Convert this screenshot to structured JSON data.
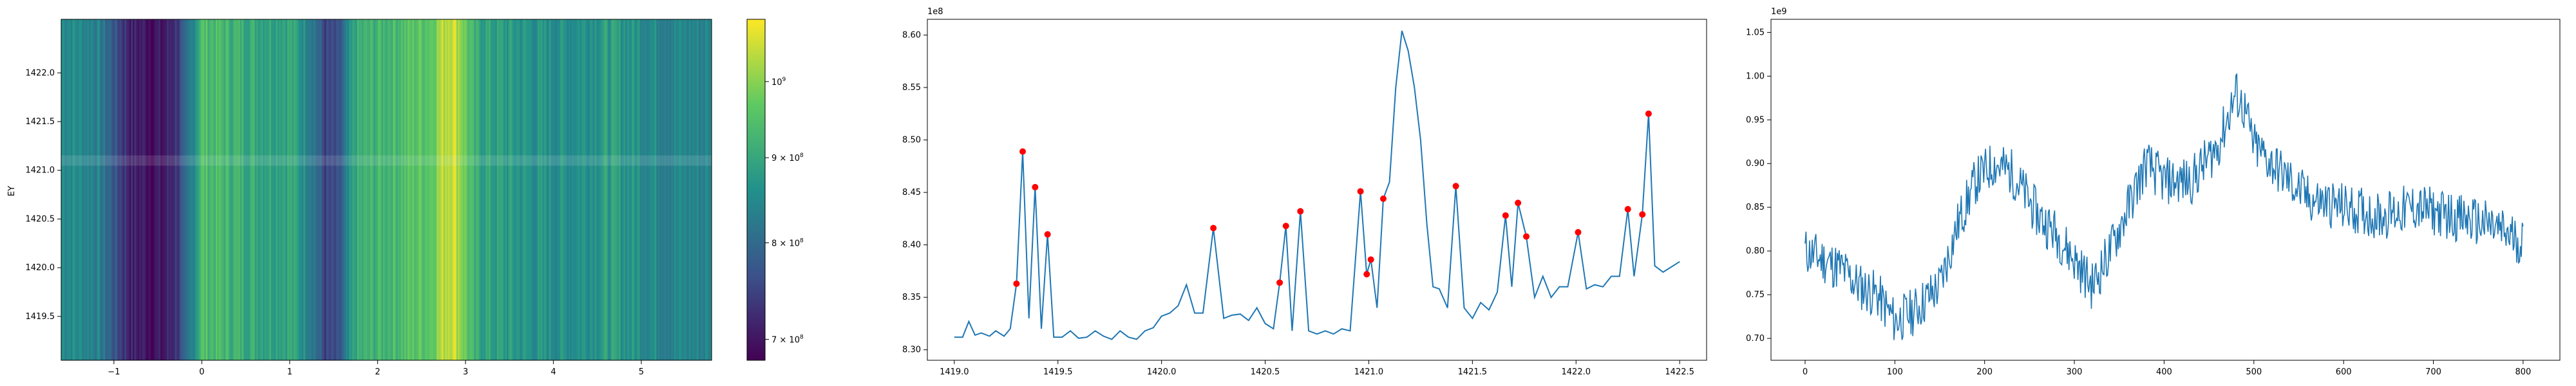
{
  "chart_data": [
    {
      "type": "heatmap",
      "ylabel": "EY",
      "xlim": [
        -1.6,
        5.8
      ],
      "ylim": [
        1419.05,
        1422.55
      ],
      "x_ticks": [
        -1,
        0,
        1,
        2,
        3,
        4,
        5
      ],
      "x_tick_labels": [
        "−1",
        "0",
        "1",
        "2",
        "3",
        "4",
        "5"
      ],
      "y_ticks": [
        1419.5,
        1420.0,
        1420.5,
        1421.0,
        1421.5,
        1422.0
      ],
      "y_tick_labels": [
        "1419.5",
        "1420.0",
        "1420.5",
        "1421.0",
        "1421.5",
        "1422.0"
      ],
      "colormap": [
        "#440154",
        "#3b528b",
        "#21918c",
        "#5ec962",
        "#fde725"
      ],
      "column_intensity_profile": {
        "x": [
          -1.6,
          -1.2,
          -0.8,
          -0.45,
          -0.2,
          0.0,
          0.3,
          0.7,
          1.0,
          1.25,
          1.4,
          1.55,
          1.75,
          2.0,
          2.3,
          2.6,
          2.75,
          2.85,
          2.95,
          3.1,
          3.4,
          3.8,
          4.2,
          4.6,
          5.0,
          5.4,
          5.8
        ],
        "level": [
          0.5,
          0.45,
          0.1,
          0.05,
          0.25,
          0.7,
          0.65,
          0.6,
          0.6,
          0.45,
          0.2,
          0.2,
          0.6,
          0.65,
          0.7,
          0.75,
          0.9,
          0.95,
          0.85,
          0.6,
          0.55,
          0.5,
          0.5,
          0.55,
          0.5,
          0.45,
          0.45
        ]
      },
      "ridge_y": 1421.1,
      "colorbar": {
        "scale": "log",
        "range": [
          680000000.0,
          1090000000.0
        ],
        "ticks": [
          {
            "value": 700000000.0,
            "base": "7 × 10",
            "exp": "8"
          },
          {
            "value": 800000000.0,
            "base": "8 × 10",
            "exp": "8"
          },
          {
            "value": 900000000.0,
            "base": "9 × 10",
            "exp": "8"
          },
          {
            "value": 1000000000.0,
            "base": "10",
            "exp": "9"
          }
        ]
      }
    },
    {
      "type": "line",
      "offset_text": "1e8",
      "xlim": [
        1418.87,
        1422.63
      ],
      "ylim": [
        8.29,
        8.615
      ],
      "x_ticks": [
        1419.0,
        1419.5,
        1420.0,
        1420.5,
        1421.0,
        1421.5,
        1422.0,
        1422.5
      ],
      "x_tick_labels": [
        "1419.0",
        "1419.5",
        "1420.0",
        "1420.5",
        "1421.0",
        "1421.5",
        "1422.0",
        "1422.5"
      ],
      "y_ticks": [
        8.3,
        8.35,
        8.4,
        8.45,
        8.5,
        8.55,
        8.6
      ],
      "y_tick_labels": [
        "8.30",
        "8.35",
        "8.40",
        "8.45",
        "8.50",
        "8.55",
        "8.60"
      ],
      "line_color": "#1f77b4",
      "marker_color": "#ff0000",
      "x": [
        1419.0,
        1419.04,
        1419.07,
        1419.1,
        1419.13,
        1419.17,
        1419.2,
        1419.24,
        1419.27,
        1419.3,
        1419.33,
        1419.36,
        1419.39,
        1419.42,
        1419.45,
        1419.48,
        1419.52,
        1419.56,
        1419.6,
        1419.64,
        1419.68,
        1419.72,
        1419.76,
        1419.8,
        1419.84,
        1419.88,
        1419.92,
        1419.96,
        1420.0,
        1420.04,
        1420.08,
        1420.12,
        1420.16,
        1420.2,
        1420.25,
        1420.3,
        1420.34,
        1420.38,
        1420.42,
        1420.46,
        1420.5,
        1420.54,
        1420.57,
        1420.6,
        1420.63,
        1420.67,
        1420.71,
        1420.75,
        1420.79,
        1420.83,
        1420.87,
        1420.91,
        1420.96,
        1420.99,
        1421.01,
        1421.04,
        1421.07,
        1421.1,
        1421.13,
        1421.16,
        1421.19,
        1421.22,
        1421.25,
        1421.28,
        1421.31,
        1421.34,
        1421.38,
        1421.42,
        1421.46,
        1421.5,
        1421.54,
        1421.58,
        1421.62,
        1421.66,
        1421.69,
        1421.72,
        1421.76,
        1421.8,
        1421.84,
        1421.88,
        1421.92,
        1421.96,
        1422.01,
        1422.05,
        1422.09,
        1422.13,
        1422.17,
        1422.21,
        1422.25,
        1422.28,
        1422.32,
        1422.35,
        1422.38,
        1422.42,
        1422.46,
        1422.5
      ],
      "y": [
        8.312,
        8.312,
        8.327,
        8.314,
        8.316,
        8.313,
        8.318,
        8.313,
        8.32,
        8.363,
        8.489,
        8.33,
        8.455,
        8.32,
        8.41,
        8.312,
        8.312,
        8.318,
        8.311,
        8.312,
        8.318,
        8.313,
        8.31,
        8.318,
        8.312,
        8.31,
        8.318,
        8.321,
        8.332,
        8.335,
        8.342,
        8.362,
        8.335,
        8.335,
        8.416,
        8.33,
        8.333,
        8.334,
        8.328,
        8.34,
        8.325,
        8.32,
        8.364,
        8.418,
        8.318,
        8.432,
        8.318,
        8.315,
        8.318,
        8.315,
        8.32,
        8.318,
        8.451,
        8.372,
        8.386,
        8.34,
        8.444,
        8.46,
        8.55,
        8.604,
        8.585,
        8.55,
        8.5,
        8.42,
        8.36,
        8.358,
        8.34,
        8.456,
        8.34,
        8.33,
        8.345,
        8.338,
        8.355,
        8.428,
        8.36,
        8.44,
        8.408,
        8.35,
        8.37,
        8.35,
        8.36,
        8.36,
        8.412,
        8.358,
        8.362,
        8.36,
        8.37,
        8.37,
        8.434,
        8.37,
        8.429,
        8.525,
        8.38,
        8.374,
        8.379,
        8.384
      ],
      "peaks": [
        {
          "x": 1419.3,
          "y": 8.363
        },
        {
          "x": 1419.33,
          "y": 8.489
        },
        {
          "x": 1419.39,
          "y": 8.455
        },
        {
          "x": 1419.45,
          "y": 8.41
        },
        {
          "x": 1420.25,
          "y": 8.416
        },
        {
          "x": 1420.57,
          "y": 8.364
        },
        {
          "x": 1420.6,
          "y": 8.418
        },
        {
          "x": 1420.67,
          "y": 8.432
        },
        {
          "x": 1420.96,
          "y": 8.451
        },
        {
          "x": 1420.99,
          "y": 8.372
        },
        {
          "x": 1421.01,
          "y": 8.386
        },
        {
          "x": 1421.07,
          "y": 8.444
        },
        {
          "x": 1421.42,
          "y": 8.456
        },
        {
          "x": 1421.66,
          "y": 8.428
        },
        {
          "x": 1421.72,
          "y": 8.44
        },
        {
          "x": 1421.76,
          "y": 8.408
        },
        {
          "x": 1422.01,
          "y": 8.412
        },
        {
          "x": 1422.25,
          "y": 8.434
        },
        {
          "x": 1422.32,
          "y": 8.429
        },
        {
          "x": 1422.35,
          "y": 8.525
        }
      ]
    },
    {
      "type": "line",
      "offset_text": "1e9",
      "xlim": [
        -38,
        841
      ],
      "ylim": [
        0.675,
        1.065
      ],
      "x_ticks": [
        0,
        100,
        200,
        300,
        400,
        500,
        600,
        700,
        800
      ],
      "x_tick_labels": [
        "0",
        "100",
        "200",
        "300",
        "400",
        "500",
        "600",
        "700",
        "800"
      ],
      "y_ticks": [
        0.7,
        0.75,
        0.8,
        0.85,
        0.9,
        0.95,
        1.0,
        1.05
      ],
      "y_tick_labels": [
        "0.70",
        "0.75",
        "0.80",
        "0.85",
        "0.90",
        "0.95",
        "1.00",
        "1.05"
      ],
      "line_color": "#1f77b4",
      "n_points": 801,
      "trend": {
        "x": [
          0,
          20,
          40,
          60,
          80,
          100,
          120,
          150,
          170,
          190,
          210,
          230,
          260,
          280,
          300,
          320,
          340,
          360,
          380,
          400,
          430,
          460,
          480,
          490,
          500,
          520,
          540,
          560,
          600,
          640,
          680,
          720,
          760,
          800
        ],
        "y": [
          0.8,
          0.79,
          0.78,
          0.76,
          0.75,
          0.72,
          0.73,
          0.76,
          0.83,
          0.88,
          0.9,
          0.89,
          0.84,
          0.82,
          0.79,
          0.76,
          0.8,
          0.85,
          0.9,
          0.88,
          0.88,
          0.92,
          0.98,
          0.96,
          0.92,
          0.9,
          0.88,
          0.86,
          0.85,
          0.84,
          0.85,
          0.84,
          0.83,
          0.81
        ]
      },
      "noise_amplitude": 0.028
    }
  ]
}
